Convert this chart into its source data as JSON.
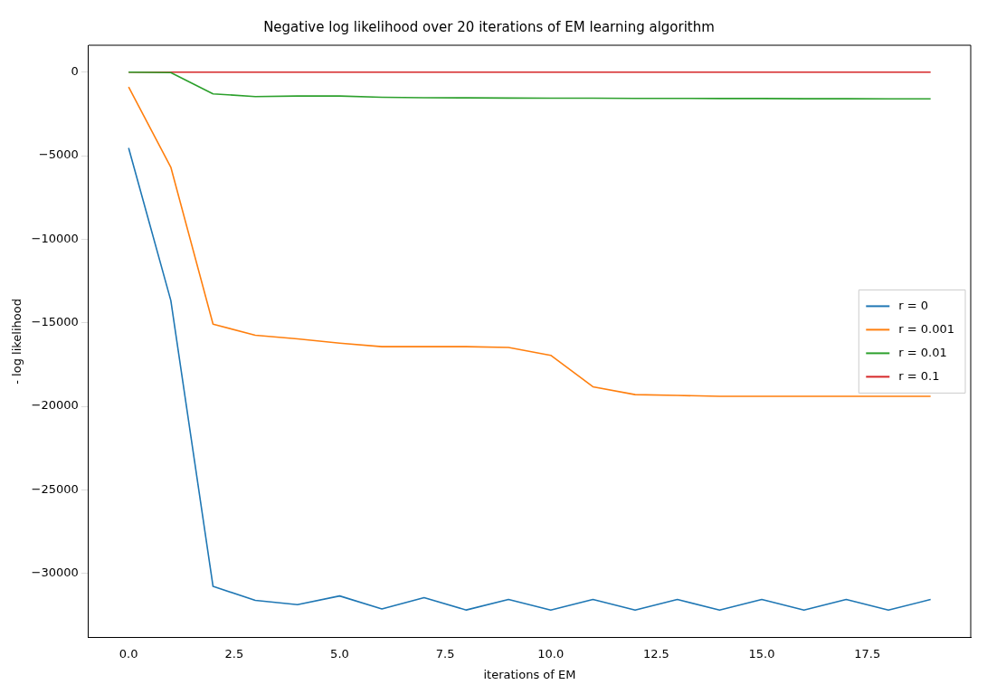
{
  "chart_data": {
    "type": "line",
    "title": "Negative log likelihood over 20 iterations of EM learning algorithm",
    "xlabel": "iterations of EM",
    "ylabel": "- log likelihood",
    "x": [
      0,
      1,
      2,
      3,
      4,
      5,
      6,
      7,
      8,
      9,
      10,
      11,
      12,
      13,
      14,
      15,
      16,
      17,
      18,
      19
    ],
    "series": [
      {
        "name": "r = 0",
        "color": "#1f77b4",
        "values": [
          -4540,
          -13670,
          -30780,
          -31610,
          -31870,
          -31350,
          -32130,
          -31450,
          -32190,
          -31560,
          -32200,
          -31560,
          -32200,
          -31560,
          -32200,
          -31560,
          -32200,
          -31560,
          -32200,
          -31560
        ]
      },
      {
        "name": "r = 0.001",
        "color": "#ff7f0e",
        "values": [
          -890,
          -5690,
          -15080,
          -15750,
          -15960,
          -16220,
          -16430,
          -16430,
          -16430,
          -16480,
          -16950,
          -18830,
          -19300,
          -19350,
          -19400,
          -19400,
          -19400,
          -19400,
          -19400,
          -19400
        ]
      },
      {
        "name": "r = 0.01",
        "color": "#2ca02c",
        "values": [
          0,
          -30,
          -1300,
          -1460,
          -1430,
          -1430,
          -1500,
          -1530,
          -1540,
          -1550,
          -1560,
          -1560,
          -1570,
          -1570,
          -1580,
          -1580,
          -1590,
          -1590,
          -1600,
          -1600
        ]
      },
      {
        "name": "r = 0.1",
        "color": "#d62728",
        "values": [
          0,
          0,
          0,
          0,
          0,
          0,
          0,
          0,
          0,
          0,
          0,
          0,
          0,
          0,
          0,
          0,
          0,
          0,
          0,
          0
        ]
      }
    ],
    "xlim": [
      -0.95,
      19.95
    ],
    "xticks": [
      {
        "value": 0,
        "label": "0.0"
      },
      {
        "value": 2.5,
        "label": "2.5"
      },
      {
        "value": 5,
        "label": "5.0"
      },
      {
        "value": 7.5,
        "label": "7.5"
      },
      {
        "value": 10,
        "label": "10.0"
      },
      {
        "value": 12.5,
        "label": "12.5"
      },
      {
        "value": 15,
        "label": "15.0"
      },
      {
        "value": 17.5,
        "label": "17.5"
      }
    ],
    "ylim": [
      -33850,
      1610
    ],
    "yticks": [
      {
        "value": -30000,
        "label": "−30000"
      },
      {
        "value": -25000,
        "label": "−25000"
      },
      {
        "value": -20000,
        "label": "−20000"
      },
      {
        "value": -15000,
        "label": "−15000"
      },
      {
        "value": -10000,
        "label": "−10000"
      },
      {
        "value": -5000,
        "label": "−5000"
      },
      0
    ],
    "grid": false,
    "legend": "right",
    "line_style": "solid",
    "marker": "none"
  }
}
